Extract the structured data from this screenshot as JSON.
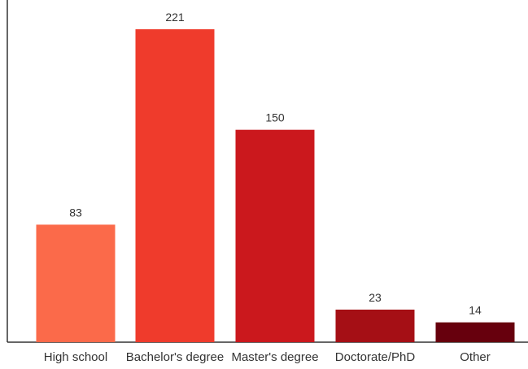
{
  "chart_data": {
    "type": "bar",
    "title": "",
    "xlabel": "",
    "ylabel": "",
    "categories": [
      "High school",
      "Bachelor's degree",
      "Master's degree",
      "Doctorate/PhD",
      "Other"
    ],
    "values": [
      83,
      221,
      150,
      23,
      14
    ],
    "value_labels": [
      "83",
      "221",
      "150",
      "23",
      "14"
    ],
    "ylim": [
      0,
      221
    ],
    "grid": false,
    "legend": "none",
    "colors": [
      "#fb6a4a",
      "#ef3b2c",
      "#cb181d",
      "#a50f15",
      "#67000d"
    ],
    "axis_color": "#333333"
  }
}
